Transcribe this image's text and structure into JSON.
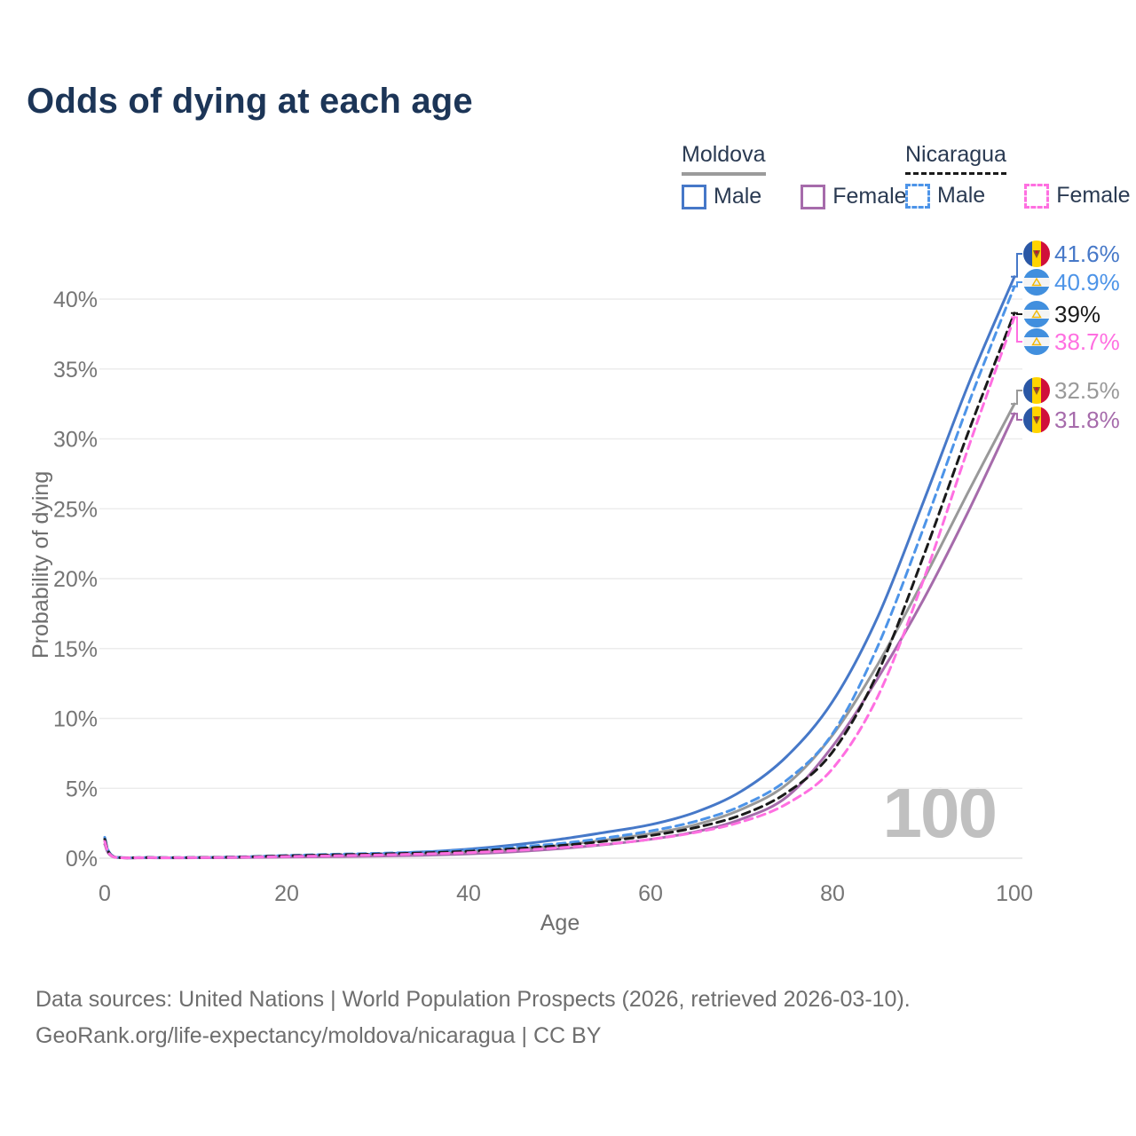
{
  "title": "Odds of dying at each age",
  "legend": {
    "groups": [
      {
        "country": "Moldova",
        "underline": "solid",
        "underline_color": "#9b9b9b",
        "items": [
          {
            "label": "Male",
            "color": "#4678c8",
            "dashed": false
          },
          {
            "label": "Female",
            "color": "#a66bab",
            "dashed": false
          }
        ]
      },
      {
        "country": "Nicaragua",
        "underline": "dashed",
        "underline_color": "#1a1a1a",
        "items": [
          {
            "label": "Male",
            "color": "#4d94e8",
            "dashed": true
          },
          {
            "label": "Female",
            "color": "#ff6fe1",
            "dashed": true
          }
        ]
      }
    ]
  },
  "watermark": "100",
  "footer": {
    "line1": "Data sources: United Nations | World Population Prospects (2026, retrieved 2026-03-10).",
    "line2": "GeoRank.org/life-expectancy/moldova/nicaragua | CC BY"
  },
  "chart_data": {
    "type": "line",
    "title": "Odds of dying at each age",
    "xlabel": "Age",
    "ylabel": "Probability of dying",
    "xlim": [
      0,
      100
    ],
    "ylim": [
      0,
      43
    ],
    "xticks": [
      0,
      20,
      40,
      60,
      80,
      100
    ],
    "yticks": [
      "0%",
      "5%",
      "10%",
      "15%",
      "20%",
      "25%",
      "30%",
      "35%",
      "40%"
    ],
    "grid": "horizontal",
    "legend_position": "top-right",
    "x": [
      0,
      1,
      5,
      10,
      15,
      20,
      25,
      30,
      35,
      40,
      45,
      50,
      55,
      60,
      65,
      70,
      75,
      80,
      85,
      90,
      95,
      100
    ],
    "series": [
      {
        "name": "Moldova Male",
        "country": "Moldova",
        "sex": "Male",
        "style": "solid",
        "color": "#4678c8",
        "end_label": "41.6%",
        "values": [
          1.4,
          0.1,
          0.04,
          0.04,
          0.08,
          0.16,
          0.22,
          0.3,
          0.45,
          0.65,
          0.95,
          1.35,
          1.85,
          2.4,
          3.3,
          4.8,
          7.3,
          11.2,
          17.3,
          25.5,
          34.0,
          41.6
        ]
      },
      {
        "name": "Moldova",
        "country": "Moldova",
        "sex": "Both",
        "style": "solid",
        "color": "#999999",
        "end_label": "32.5%",
        "values": [
          1.2,
          0.09,
          0.035,
          0.035,
          0.06,
          0.11,
          0.15,
          0.21,
          0.3,
          0.44,
          0.64,
          0.92,
          1.3,
          1.75,
          2.4,
          3.5,
          5.3,
          8.8,
          13.9,
          19.9,
          26.3,
          32.5
        ]
      },
      {
        "name": "Moldova Female",
        "country": "Moldova",
        "sex": "Female",
        "style": "solid",
        "color": "#a66bab",
        "end_label": "31.8%",
        "values": [
          1.0,
          0.08,
          0.03,
          0.03,
          0.05,
          0.08,
          0.11,
          0.15,
          0.21,
          0.31,
          0.46,
          0.68,
          0.98,
          1.35,
          1.9,
          2.8,
          4.4,
          8.0,
          12.9,
          18.5,
          24.9,
          31.8
        ]
      },
      {
        "name": "Nicaragua Male",
        "country": "Nicaragua",
        "sex": "Male",
        "style": "dashed",
        "color": "#4d94e8",
        "end_label": "40.9%",
        "values": [
          1.5,
          0.12,
          0.05,
          0.05,
          0.1,
          0.2,
          0.28,
          0.35,
          0.45,
          0.6,
          0.8,
          1.05,
          1.45,
          1.95,
          2.65,
          3.75,
          5.6,
          8.9,
          15.2,
          23.6,
          32.6,
          40.9
        ]
      },
      {
        "name": "Nicaragua",
        "country": "Nicaragua",
        "sex": "Both",
        "style": "dashed",
        "color": "#1a1a1a",
        "end_label": "39%",
        "values": [
          1.35,
          0.1,
          0.045,
          0.045,
          0.09,
          0.17,
          0.24,
          0.3,
          0.38,
          0.5,
          0.68,
          0.9,
          1.22,
          1.62,
          2.2,
          3.1,
          4.7,
          7.6,
          13.3,
          21.6,
          30.6,
          39.0
        ]
      },
      {
        "name": "Nicaragua Female",
        "country": "Nicaragua",
        "sex": "Female",
        "style": "dashed",
        "color": "#ff6fe1",
        "end_label": "38.7%",
        "values": [
          1.2,
          0.09,
          0.04,
          0.04,
          0.07,
          0.12,
          0.17,
          0.23,
          0.3,
          0.4,
          0.55,
          0.75,
          1.0,
          1.35,
          1.85,
          2.6,
          3.9,
          6.4,
          11.6,
          19.9,
          29.5,
          38.7
        ]
      }
    ]
  }
}
